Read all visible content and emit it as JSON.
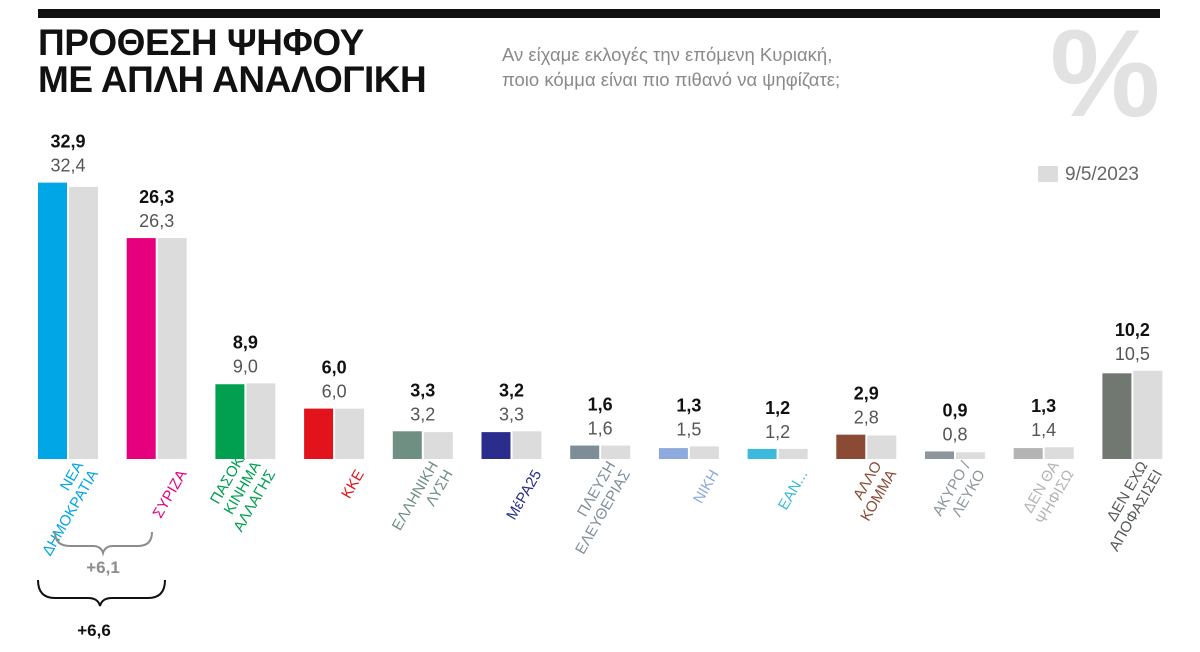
{
  "header": {
    "title_line1": "ΠΡΟΘΕΣΗ ΨΗΦΟΥ",
    "title_line2": "ΜΕ ΑΠΛΗ ΑΝΑΛΟΓΙΚΗ",
    "question_line1": "Αν είχαμε εκλογές την επόμενη Κυριακή,",
    "question_line2": "ποιο κόμμα είναι πιο πιθανό να ψηφίζατε;",
    "percent_symbol": "%"
  },
  "chart_data": {
    "type": "bar",
    "categories": [
      [
        "ΝΕΑ",
        "ΔΗΜΟΚΡΑΤΙΑ"
      ],
      [
        "ΣΥΡΙΖΑ"
      ],
      [
        "ΠΑΣΟΚ/",
        "ΚΙΝΗΜΑ",
        "ΑΛΛΑΓΗΣ"
      ],
      [
        "ΚΚΕ"
      ],
      [
        "ΕΛΛΗΝΙΚΗ",
        "ΛΥΣΗ"
      ],
      [
        "ΜέΡΑ25"
      ],
      [
        "ΠΛΕΥΣΗ",
        "ΕΛΕΥΘΕΡΙΑΣ"
      ],
      [
        "ΝΙΚΗ"
      ],
      [
        "ΕΑΝ..."
      ],
      [
        "ΑΛΛΟ",
        "ΚΟΜΜΑ"
      ],
      [
        "ΑΚΥΡΟ /",
        "ΛΕΥΚΟ"
      ],
      [
        "ΔΕΝ ΘΑ",
        "ΨΗΦΙΣΩ"
      ],
      [
        "ΔΕΝ ΕΧΩ",
        "ΑΠΟΦΑΣΙΣΕΙ"
      ]
    ],
    "series": [
      {
        "values": [
          32.9,
          26.3,
          8.9,
          6.0,
          3.3,
          3.2,
          1.6,
          1.3,
          1.2,
          2.9,
          0.9,
          1.3,
          10.2
        ],
        "labels": [
          "32,9",
          "26,3",
          "8,9",
          "6,0",
          "3,3",
          "3,2",
          "1,6",
          "1,3",
          "1,2",
          "2,9",
          "0,9",
          "1,3",
          "10,2"
        ],
        "colors": [
          "#00a6e5",
          "#e6007e",
          "#00a050",
          "#e3131b",
          "#6f8f83",
          "#2a2d8e",
          "#7e8e99",
          "#8ea9dd",
          "#3cb9dd",
          "#8b4a33",
          "#8c969c",
          "#b4b4b4",
          "#707871"
        ]
      },
      {
        "name": "9/5/2023",
        "values": [
          32.4,
          26.3,
          9.0,
          6.0,
          3.2,
          3.3,
          1.6,
          1.5,
          1.2,
          2.8,
          0.8,
          1.4,
          10.5
        ],
        "labels": [
          "32,4",
          "26,3",
          "9,0",
          "6,0",
          "3,2",
          "3,3",
          "1,6",
          "1,5",
          "1,2",
          "2,8",
          "0,8",
          "1,4",
          "10,5"
        ],
        "color": "#dcdcdc"
      }
    ],
    "label_colors": [
      "#00a6e5",
      "#e6007e",
      "#00a050",
      "#e3131b",
      "#6f8f83",
      "#2a2d8e",
      "#7e8e99",
      "#8ea9dd",
      "#3cb9dd",
      "#8b4a33",
      "#8c969c",
      "#b4b4b4",
      "#555a56"
    ],
    "annotations": [
      {
        "label": "+6,1",
        "color": "#8c8c8c"
      },
      {
        "label": "+6,6",
        "color": "#111111"
      }
    ],
    "legend": "top-right",
    "grid": false
  }
}
